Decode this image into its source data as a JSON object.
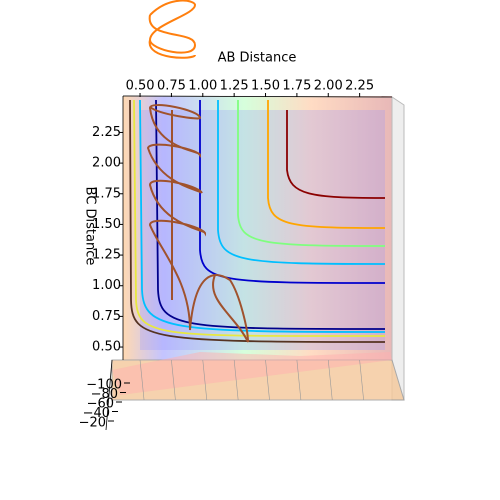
{
  "chart_data": {
    "type": "surface3d",
    "x_label": "AB Distance",
    "y_label": "BC Distance",
    "xlim": [
      0.4,
      2.5
    ],
    "xticks": [
      {
        "value": 0.5,
        "label": "0.50"
      },
      {
        "value": 0.75,
        "label": "0.75"
      },
      {
        "value": 1.0,
        "label": "1.00"
      },
      {
        "value": 1.25,
        "label": "1.25"
      },
      {
        "value": 1.5,
        "label": "1.50"
      },
      {
        "value": 1.75,
        "label": "1.75"
      },
      {
        "value": 2.0,
        "label": "2.00"
      },
      {
        "value": 2.25,
        "label": "2.25"
      }
    ],
    "ylim": [
      0.4,
      2.5
    ],
    "yticks": [
      {
        "value": 0.5,
        "label": "0.50"
      },
      {
        "value": 0.75,
        "label": "0.75"
      },
      {
        "value": 1.0,
        "label": "1.00"
      },
      {
        "value": 1.25,
        "label": "1.25"
      },
      {
        "value": 1.5,
        "label": "1.50"
      },
      {
        "value": 1.75,
        "label": "1.75"
      },
      {
        "value": 2.0,
        "label": "2.00"
      },
      {
        "value": 2.25,
        "label": "2.25"
      }
    ],
    "zlim": [
      -100,
      -20
    ],
    "zticks": [
      {
        "value": -100,
        "label": "−100"
      },
      {
        "value": -80,
        "label": "−80"
      },
      {
        "value": -60,
        "label": "−60"
      },
      {
        "value": -40,
        "label": "−40"
      },
      {
        "value": -20,
        "label": "−20"
      }
    ]
  }
}
